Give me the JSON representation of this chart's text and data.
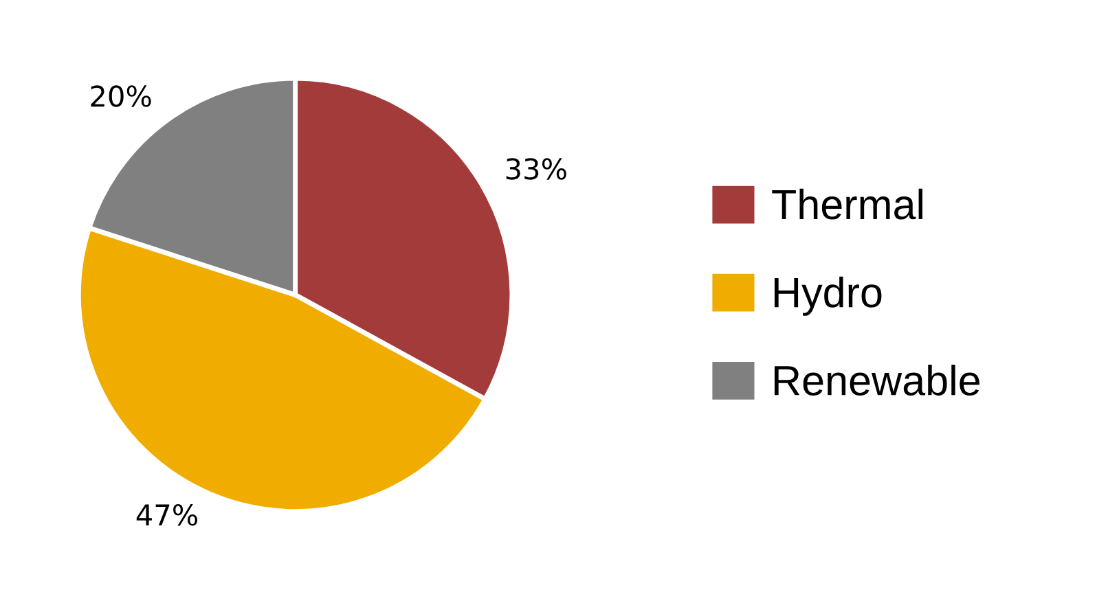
{
  "chart_data": {
    "type": "pie",
    "categories": [
      "Thermal",
      "Hydro",
      "Renewable"
    ],
    "values": [
      33,
      47,
      20
    ],
    "value_labels": [
      "33%",
      "47%",
      "20%"
    ],
    "colors": [
      "#a33b3b",
      "#f0ad00",
      "#808080"
    ],
    "legend": "right"
  }
}
